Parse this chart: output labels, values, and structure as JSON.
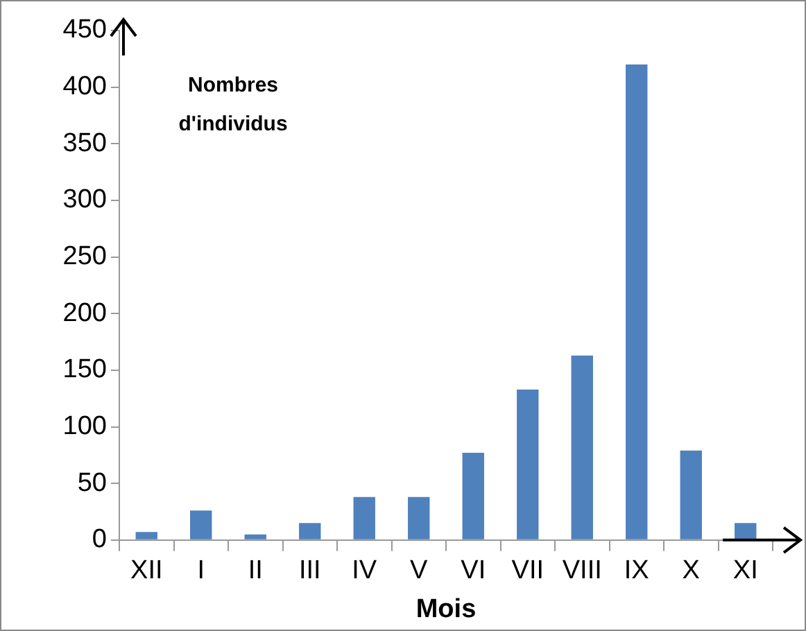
{
  "chart_data": {
    "type": "bar",
    "xlabel": "Mois",
    "ylabel": "Nombres d'individus",
    "categories": [
      "XII",
      "I",
      "II",
      "III",
      "IV",
      "V",
      "VI",
      "VII",
      "VIII",
      "IX",
      "X",
      "XI"
    ],
    "values": [
      7,
      26,
      5,
      15,
      38,
      38,
      77,
      133,
      163,
      420,
      79,
      15
    ],
    "color": "#4f81bd",
    "ylim": [
      0,
      450
    ],
    "yticks": [
      0,
      50,
      100,
      150,
      200,
      250,
      300,
      350,
      400,
      450
    ],
    "grid": false,
    "legend": false
  }
}
